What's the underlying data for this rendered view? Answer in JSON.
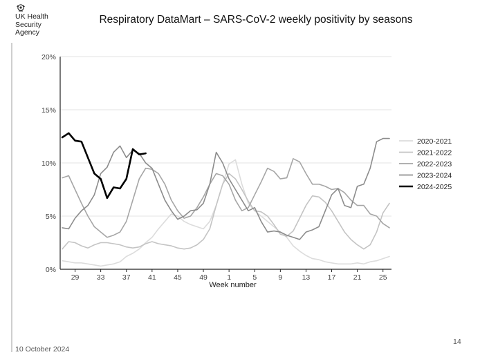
{
  "header": {
    "org_name": "UK Health\nSecurity\nAgency",
    "title": "Respiratory DataMart – SARS-CoV-2 weekly positivity by seasons"
  },
  "footer": {
    "date": "10 October 2024",
    "page_number": "14"
  },
  "colors": {
    "2020-2021": "#dcdcdc",
    "2021-2022": "#c4c4c4",
    "2022-2023": "#a6a6a6",
    "2023-2024": "#8c8c8c",
    "2024-2025": "#000000",
    "grid": "#e3e3e3",
    "axis": "#222222"
  },
  "chart_data": {
    "type": "line",
    "title": "Respiratory DataMart – SARS-CoV-2 weekly positivity by seasons",
    "xlabel": "Week number",
    "ylabel": "",
    "ylim": [
      0,
      20
    ],
    "y_ticks": [
      0,
      5,
      10,
      15,
      20
    ],
    "y_tick_labels": [
      "0%",
      "5%",
      "10%",
      "15%",
      "20%"
    ],
    "x_tick_labels": [
      "29",
      "33",
      "37",
      "41",
      "45",
      "49",
      "1",
      "5",
      "9",
      "13",
      "17",
      "21",
      "25"
    ],
    "x_tick_positions": [
      2,
      6,
      10,
      14,
      18,
      22,
      26,
      30,
      34,
      38,
      42,
      46,
      50
    ],
    "weeks": [
      "27",
      "28",
      "29",
      "30",
      "31",
      "32",
      "33",
      "34",
      "35",
      "36",
      "37",
      "38",
      "39",
      "40",
      "41",
      "42",
      "43",
      "44",
      "45",
      "46",
      "47",
      "48",
      "49",
      "50",
      "51",
      "52",
      "1",
      "2",
      "3",
      "4",
      "5",
      "6",
      "7",
      "8",
      "9",
      "10",
      "11",
      "12",
      "13",
      "14",
      "15",
      "16",
      "17",
      "18",
      "19",
      "20",
      "21",
      "22",
      "23",
      "24",
      "25",
      "26"
    ],
    "legend_position": "right",
    "series": [
      {
        "name": "2020-2021",
        "values": [
          0.8,
          0.7,
          0.6,
          0.6,
          0.5,
          0.4,
          0.3,
          0.4,
          0.5,
          0.7,
          1.2,
          1.5,
          1.9,
          2.5,
          3.0,
          3.8,
          4.5,
          5.2,
          5.0,
          4.5,
          4.2,
          4.0,
          3.8,
          4.5,
          6.0,
          8.0,
          9.9,
          10.3,
          8.0,
          6.2,
          5.5,
          5.0,
          4.5,
          4.0,
          3.5,
          3.0,
          2.2,
          1.7,
          1.3,
          1.0,
          0.9,
          0.7,
          0.6,
          0.5,
          0.5,
          0.5,
          0.6,
          0.5,
          0.7,
          0.8,
          1.0,
          1.2
        ]
      },
      {
        "name": "2021-2022",
        "values": [
          1.9,
          2.6,
          2.5,
          2.2,
          2.0,
          2.3,
          2.5,
          2.5,
          2.4,
          2.3,
          2.1,
          2.0,
          2.1,
          2.4,
          2.6,
          2.4,
          2.3,
          2.2,
          2.0,
          1.9,
          2.0,
          2.3,
          2.8,
          3.8,
          6.0,
          8.0,
          9.0,
          8.5,
          7.5,
          6.4,
          5.5,
          5.4,
          5.0,
          4.2,
          3.3,
          3.1,
          3.6,
          4.8,
          6.0,
          6.9,
          6.8,
          6.3,
          5.5,
          4.5,
          3.5,
          2.8,
          2.3,
          1.9,
          2.3,
          3.5,
          5.3,
          6.2
        ]
      },
      {
        "name": "2022-2023",
        "values": [
          8.6,
          8.8,
          7.5,
          6.2,
          5.0,
          4.0,
          3.5,
          3.0,
          3.2,
          3.5,
          4.5,
          6.5,
          8.5,
          9.5,
          9.4,
          9.0,
          8.0,
          6.5,
          5.5,
          4.8,
          5.0,
          5.8,
          6.8,
          8.0,
          9.0,
          8.8,
          8.0,
          6.5,
          5.5,
          5.8,
          7.0,
          8.2,
          9.5,
          9.2,
          8.5,
          8.6,
          10.4,
          10.1,
          9.0,
          8.0,
          8.0,
          7.8,
          7.5,
          7.6,
          7.2,
          6.5,
          6.0,
          6.0,
          5.2,
          5.0,
          4.3,
          3.9
        ]
      },
      {
        "name": "2023-2024",
        "values": [
          3.9,
          3.8,
          4.8,
          5.5,
          6.0,
          7.0,
          9.0,
          9.6,
          11.0,
          11.6,
          10.5,
          11.2,
          10.9,
          10.0,
          9.5,
          8.0,
          6.5,
          5.5,
          4.7,
          5.0,
          5.5,
          5.6,
          6.2,
          8.0,
          11.0,
          10.0,
          8.5,
          7.5,
          6.5,
          5.5,
          5.8,
          4.5,
          3.5,
          3.6,
          3.5,
          3.2,
          3.0,
          2.8,
          3.5,
          3.7,
          4.0,
          5.5,
          7.0,
          7.6,
          6.0,
          5.8,
          7.8,
          8.0,
          9.5,
          12.0,
          12.3,
          12.3
        ]
      },
      {
        "name": "2024-2025",
        "values": [
          12.4,
          12.8,
          12.1,
          12.0,
          10.5,
          9.0,
          8.5,
          6.7,
          7.7,
          7.6,
          8.5,
          11.3,
          10.8,
          10.9
        ]
      }
    ]
  }
}
